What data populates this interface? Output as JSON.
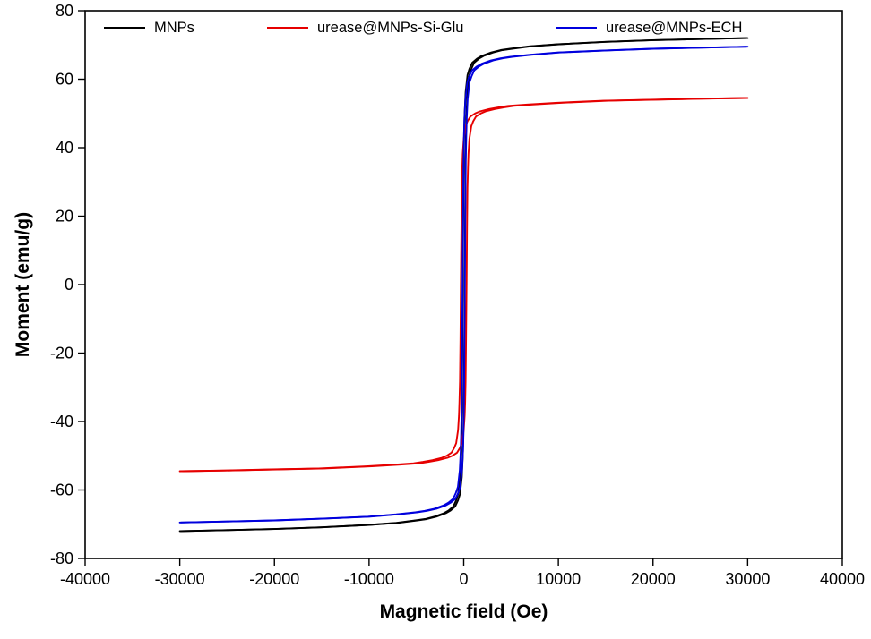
{
  "figure": {
    "background": "#ffffff",
    "axis_color": "#000000"
  },
  "chart_data": {
    "type": "line",
    "title": "",
    "xlabel": "Magnetic field (Oe)",
    "ylabel": "Moment (emu/g)",
    "xlim": [
      -40000,
      40000
    ],
    "ylim": [
      -80,
      80
    ],
    "x_ticks": [
      -40000,
      -30000,
      -20000,
      -10000,
      0,
      10000,
      20000,
      30000,
      40000
    ],
    "y_ticks": [
      -80,
      -60,
      -40,
      -20,
      0,
      20,
      40,
      60,
      80
    ],
    "grid": false,
    "legend_position": "top-inside",
    "curve_kind": "magnetization-hysteresis",
    "x": [
      -30000,
      -25000,
      -20000,
      -15000,
      -10000,
      -7000,
      -5000,
      -4000,
      -3000,
      -2000,
      -1500,
      -1000,
      -700,
      -500,
      -300,
      -200,
      -150,
      -100,
      -50,
      0,
      50,
      100,
      150,
      200,
      300,
      500,
      700,
      1000,
      1500,
      2000,
      3000,
      4000,
      5000,
      7000,
      10000,
      15000,
      20000,
      25000,
      30000
    ],
    "series": [
      {
        "name": "MNPs",
        "color": "#000000",
        "saturation_emu_g": 72.0,
        "coercivity_oe": 100,
        "values": [
          -72.0,
          -71.7,
          -71.4,
          -70.9,
          -70.2,
          -69.6,
          -68.9,
          -68.5,
          -67.8,
          -66.8,
          -66.0,
          -64.8,
          -63.0,
          -61.2,
          -56.2,
          -50.4,
          -45.4,
          -37.4,
          -21.6,
          0,
          21.6,
          37.4,
          45.4,
          50.4,
          56.2,
          61.2,
          63.0,
          64.8,
          66.0,
          66.8,
          67.8,
          68.5,
          68.9,
          69.6,
          70.2,
          70.9,
          71.4,
          71.7,
          72.0
        ]
      },
      {
        "name": "urease@MNPs-Si-Glu",
        "color": "#e60000",
        "saturation_emu_g": 54.5,
        "coercivity_oe": 300,
        "values": [
          -54.5,
          -54.3,
          -54.0,
          -53.7,
          -53.1,
          -52.6,
          -52.2,
          -51.8,
          -51.3,
          -50.6,
          -50.0,
          -49.1,
          -47.7,
          -46.3,
          -42.5,
          -38.2,
          -34.3,
          -28.3,
          -16.4,
          0,
          16.4,
          28.3,
          34.3,
          38.2,
          42.5,
          46.3,
          47.7,
          49.1,
          50.0,
          50.6,
          51.3,
          51.8,
          52.2,
          52.6,
          53.1,
          53.7,
          54.0,
          54.3,
          54.5
        ]
      },
      {
        "name": "urease@MNPs-ECH",
        "color": "#0000dd",
        "saturation_emu_g": 69.5,
        "coercivity_oe": 120,
        "values": [
          -69.5,
          -69.2,
          -68.9,
          -68.4,
          -67.8,
          -67.1,
          -66.5,
          -66.1,
          -65.5,
          -64.5,
          -63.7,
          -62.6,
          -60.8,
          -59.1,
          -54.2,
          -48.7,
          -43.8,
          -36.1,
          -20.9,
          0,
          20.9,
          36.1,
          43.8,
          48.7,
          54.2,
          59.1,
          60.8,
          62.6,
          63.7,
          64.5,
          65.5,
          66.1,
          66.5,
          67.1,
          67.8,
          68.4,
          68.9,
          69.2,
          69.5
        ]
      }
    ]
  }
}
